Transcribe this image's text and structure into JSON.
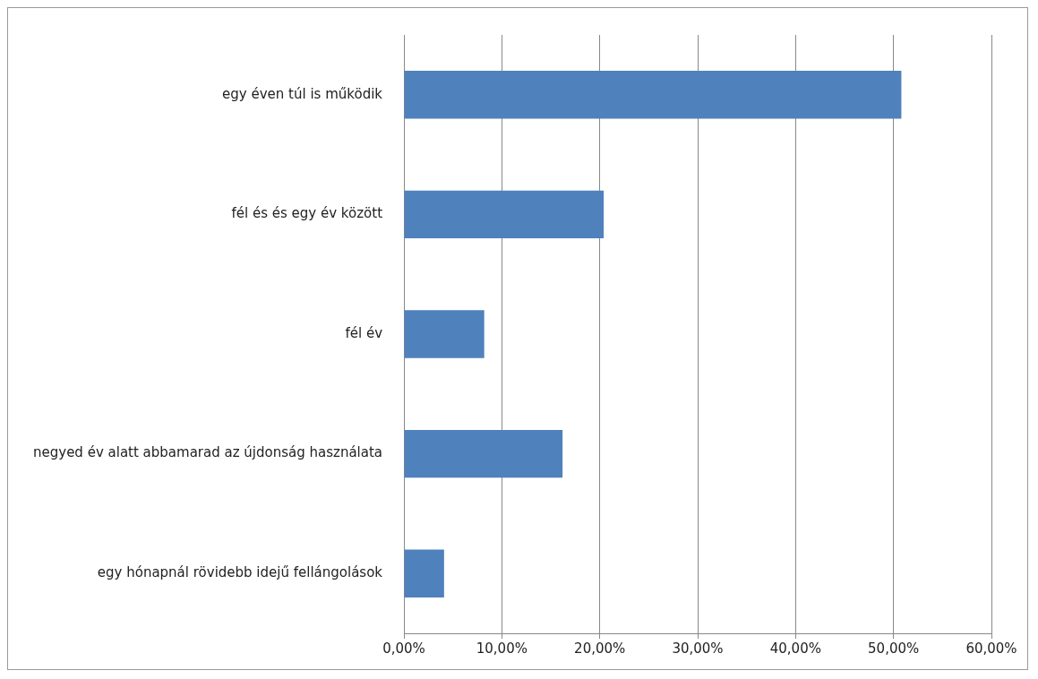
{
  "chart_data": {
    "type": "bar",
    "orientation": "horizontal",
    "categories": [
      "egy éven túl is működik",
      "fél és és egy év között",
      "fél év",
      "negyed év alatt abbamarad az újdonság használata",
      "egy hónapnál rövidebb idejű fellángolások"
    ],
    "values": [
      50.8,
      20.4,
      8.2,
      16.2,
      4.1
    ],
    "color": "#4f81bd",
    "xlim": [
      0,
      60
    ],
    "xticks": [
      {
        "value": 0,
        "label": "0,00%"
      },
      {
        "value": 10,
        "label": "10,00%"
      },
      {
        "value": 20,
        "label": "20,00%"
      },
      {
        "value": 30,
        "label": "30,00%"
      },
      {
        "value": 40,
        "label": "40,00%"
      },
      {
        "value": 50,
        "label": "50,00%"
      },
      {
        "value": 60,
        "label": "60,00%"
      }
    ],
    "grid": "x",
    "legend": false
  }
}
